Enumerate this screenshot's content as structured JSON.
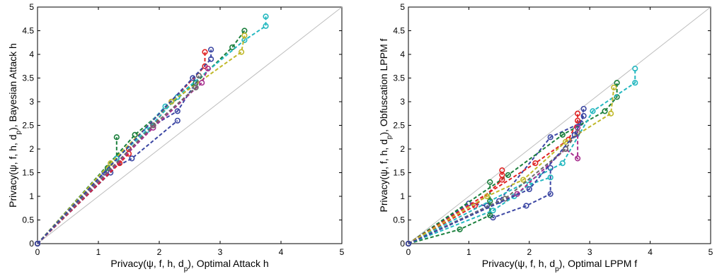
{
  "chart_data": [
    {
      "type": "scatter",
      "xlabel": "Privacy(ψ, f, h, d_p), Optimal Attack h",
      "ylabel": "Privacy(ψ, f, h, d_p), Bayesian Attack h",
      "xlim": [
        0,
        5
      ],
      "ylim": [
        0,
        5
      ],
      "xticks": [
        "0",
        "1",
        "2",
        "3",
        "4",
        "5"
      ],
      "yticks": [
        "0",
        "0.5",
        "1",
        "1.5",
        "2",
        "2.5",
        "3",
        "3.5",
        "4",
        "4.5",
        "5"
      ],
      "diagonal": true,
      "series": [
        {
          "color": "#3b46a3",
          "segments": [
            [
              [
                0,
                0
              ],
              [
                1.1,
                1.5
              ],
              [
                1.55,
                1.8
              ],
              [
                2.3,
                2.6
              ]
            ],
            [
              [
                0,
                0
              ],
              [
                1.2,
                1.5
              ],
              [
                1.9,
                2.5
              ],
              [
                2.3,
                2.8
              ],
              [
                2.6,
                3.4
              ]
            ]
          ]
        },
        {
          "color": "#1a7f3c",
          "segments": [
            [
              [
                0,
                0
              ],
              [
                1.15,
                1.6
              ],
              [
                1.3,
                1.8
              ],
              [
                1.3,
                2.25
              ]
            ],
            [
              [
                0,
                0
              ],
              [
                1.6,
                2.3
              ],
              [
                2.6,
                3.4
              ],
              [
                3.2,
                4.15
              ],
              [
                3.4,
                4.5
              ]
            ]
          ]
        },
        {
          "color": "#e02424",
          "segments": [
            [
              [
                0,
                0
              ],
              [
                1.35,
                1.7
              ],
              [
                1.5,
                1.9
              ],
              [
                1.5,
                2.0
              ]
            ],
            [
              [
                0,
                0
              ],
              [
                1.9,
                2.5
              ],
              [
                2.2,
                3.0
              ],
              [
                2.75,
                3.75
              ],
              [
                2.75,
                4.05
              ]
            ]
          ]
        },
        {
          "color": "#24b8c0",
          "segments": [
            [
              [
                0,
                0
              ],
              [
                1.3,
                1.8
              ],
              [
                1.8,
                2.4
              ],
              [
                2.3,
                3.1
              ]
            ],
            [
              [
                0,
                0
              ],
              [
                2.1,
                2.9
              ],
              [
                3.4,
                4.3
              ],
              [
                3.75,
                4.6
              ],
              [
                3.75,
                4.8
              ]
            ]
          ]
        },
        {
          "color": "#c0b82a",
          "segments": [
            [
              [
                0,
                0
              ],
              [
                1.2,
                1.7
              ],
              [
                2.2,
                3.0
              ],
              [
                3.35,
                4.05
              ],
              [
                3.4,
                4.4
              ]
            ]
          ]
        },
        {
          "color": "#a8308f",
          "segments": [
            [
              [
                0,
                0
              ],
              [
                1.9,
                2.45
              ],
              [
                2.7,
                3.4
              ],
              [
                2.8,
                3.7
              ]
            ]
          ]
        },
        {
          "color": "#6a6a6a",
          "segments": [
            [
              [
                0,
                0
              ],
              [
                1.9,
                2.5
              ],
              [
                2.6,
                3.3
              ],
              [
                2.65,
                3.55
              ]
            ]
          ]
        },
        {
          "color": "#3b46a3",
          "segments": [
            [
              [
                0,
                0
              ],
              [
                2.55,
                3.5
              ],
              [
                2.85,
                3.9
              ],
              [
                2.85,
                4.1
              ]
            ]
          ]
        }
      ]
    },
    {
      "type": "scatter",
      "xlabel": "Privacy(ψ, f, h, d_p), Optimal LPPM f",
      "ylabel": "Privacy(ψ, f, h, d_p), Obfuscation LPPM f",
      "xlim": [
        0,
        5
      ],
      "ylim": [
        0,
        5
      ],
      "xticks": [
        "0",
        "1",
        "2",
        "3",
        "4",
        "5"
      ],
      "yticks": [
        "0",
        "0.5",
        "1",
        "1.5",
        "2",
        "2.5",
        "3",
        "3.5",
        "4",
        "4.5",
        "5"
      ],
      "diagonal": true,
      "series": [
        {
          "color": "#3b46a3",
          "segments": [
            [
              [
                0,
                0
              ],
              [
                1.0,
                0.85
              ],
              [
                1.3,
                0.8
              ],
              [
                1.4,
                0.55
              ],
              [
                1.95,
                0.8
              ],
              [
                2.35,
                1.05
              ],
              [
                2.35,
                1.6
              ]
            ],
            [
              [
                0,
                0
              ],
              [
                1.5,
                0.9
              ],
              [
                2.35,
                2.25
              ],
              [
                2.85,
                2.55
              ],
              [
                2.9,
                2.85
              ]
            ]
          ]
        },
        {
          "color": "#1a7f3c",
          "segments": [
            [
              [
                0,
                0
              ],
              [
                0.85,
                0.3
              ],
              [
                1.35,
                0.6
              ],
              [
                1.35,
                0.9
              ],
              [
                1.35,
                1.3
              ]
            ],
            [
              [
                0,
                0
              ],
              [
                1.65,
                1.45
              ],
              [
                2.55,
                2.3
              ],
              [
                3.25,
                2.8
              ],
              [
                3.45,
                3.1
              ],
              [
                3.45,
                3.4
              ]
            ]
          ]
        },
        {
          "color": "#e02424",
          "segments": [
            [
              [
                0,
                0
              ],
              [
                1.1,
                0.8
              ],
              [
                1.55,
                1.35
              ],
              [
                1.55,
                1.45
              ],
              [
                1.55,
                1.55
              ]
            ],
            [
              [
                0,
                0
              ],
              [
                2.1,
                1.7
              ],
              [
                2.65,
                2.2
              ],
              [
                2.8,
                2.6
              ],
              [
                2.8,
                2.75
              ]
            ]
          ]
        },
        {
          "color": "#24b8c0",
          "segments": [
            [
              [
                0,
                0
              ],
              [
                1.4,
                0.7
              ],
              [
                1.75,
                1.0
              ],
              [
                2.0,
                1.25
              ],
              [
                2.35,
                1.4
              ]
            ],
            [
              [
                0,
                0
              ],
              [
                2.55,
                1.7
              ],
              [
                3.05,
                2.8
              ],
              [
                3.75,
                3.4
              ],
              [
                3.75,
                3.7
              ]
            ]
          ]
        },
        {
          "color": "#c0b82a",
          "segments": [
            [
              [
                0,
                0
              ],
              [
                1.3,
                1.0
              ],
              [
                1.9,
                1.35
              ],
              [
                2.6,
                2.15
              ],
              [
                3.35,
                2.75
              ],
              [
                3.4,
                3.3
              ]
            ]
          ]
        },
        {
          "color": "#a8308f",
          "segments": [
            [
              [
                0,
                0
              ],
              [
                1.8,
                1.05
              ],
              [
                2.6,
                2.0
              ],
              [
                2.8,
                1.8
              ],
              [
                2.8,
                2.45
              ]
            ]
          ]
        },
        {
          "color": "#6a6a6a",
          "segments": [
            [
              [
                0,
                0
              ],
              [
                1.6,
                0.95
              ],
              [
                2.6,
                2.0
              ],
              [
                2.8,
                2.35
              ]
            ]
          ]
        },
        {
          "color": "#3b46a3",
          "segments": [
            [
              [
                0,
                0
              ],
              [
                2.0,
                1.15
              ],
              [
                2.75,
                2.3
              ],
              [
                2.9,
                2.7
              ]
            ]
          ]
        }
      ]
    }
  ]
}
